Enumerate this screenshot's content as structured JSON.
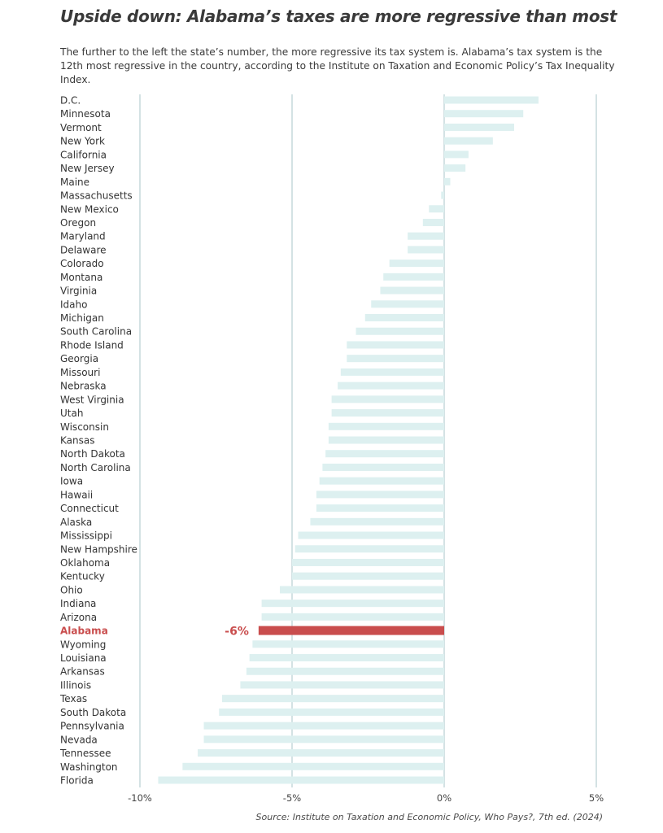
{
  "header": {
    "title": "Upside down: Alabama’s taxes are more regressive than most",
    "subtitle": "The further to the left the state’s number, the more regressive its tax system is. Alabama’s tax system is the 12th most regressive in the country, according to the Institute on Taxation and Economic Policy’s Tax Inequality Index."
  },
  "footer": {
    "source_prefix": "Source: Institute on Taxation and Economic Policy, ",
    "source_work": "Who Pays?",
    "source_suffix": ", 7th ed. (2024)"
  },
  "colors": {
    "bar": "#ddf0f0",
    "highlight": "#c94d4d",
    "gridline": "#aac4c8",
    "text": "#333333"
  },
  "chart_data": {
    "type": "bar",
    "orientation": "horizontal",
    "title": "Upside down: Alabama’s taxes are more regressive than most",
    "xlabel": "",
    "ylabel": "",
    "xlim": [
      -10,
      5
    ],
    "x_ticks": [
      -10,
      -5,
      0,
      5
    ],
    "x_tick_labels": [
      "-10%",
      "-5%",
      "0%",
      "5%"
    ],
    "grid": "vertical",
    "highlight": {
      "category": "Alabama",
      "label": "-6%"
    },
    "categories": [
      "D.C.",
      "Minnesota",
      "Vermont",
      "New York",
      "California",
      "New Jersey",
      "Maine",
      "Massachusetts",
      "New Mexico",
      "Oregon",
      "Maryland",
      "Delaware",
      "Colorado",
      "Montana",
      "Virginia",
      "Idaho",
      "Michigan",
      "South Carolina",
      "Rhode Island",
      "Georgia",
      "Missouri",
      "Nebraska",
      "West Virginia",
      "Utah",
      "Wisconsin",
      "Kansas",
      "North Dakota",
      "North Carolina",
      "Iowa",
      "Hawaii",
      "Connecticut",
      "Alaska",
      "Mississippi",
      "New Hampshire",
      "Oklahoma",
      "Kentucky",
      "Ohio",
      "Indiana",
      "Arizona",
      "Alabama",
      "Wyoming",
      "Louisiana",
      "Arkansas",
      "Illinois",
      "Texas",
      "South Dakota",
      "Pennsylvania",
      "Nevada",
      "Tennessee",
      "Washington",
      "Florida"
    ],
    "values": [
      3.1,
      2.6,
      2.3,
      1.6,
      0.8,
      0.7,
      0.2,
      -0.1,
      -0.5,
      -0.7,
      -1.2,
      -1.2,
      -1.8,
      -2.0,
      -2.1,
      -2.4,
      -2.6,
      -2.9,
      -3.2,
      -3.2,
      -3.4,
      -3.5,
      -3.7,
      -3.7,
      -3.8,
      -3.8,
      -3.9,
      -4.0,
      -4.1,
      -4.2,
      -4.2,
      -4.4,
      -4.8,
      -4.9,
      -5.0,
      -5.0,
      -5.4,
      -6.0,
      -6.0,
      -6.1,
      -6.3,
      -6.4,
      -6.5,
      -6.7,
      -7.3,
      -7.4,
      -7.9,
      -7.9,
      -8.1,
      -8.6,
      -9.4
    ]
  }
}
